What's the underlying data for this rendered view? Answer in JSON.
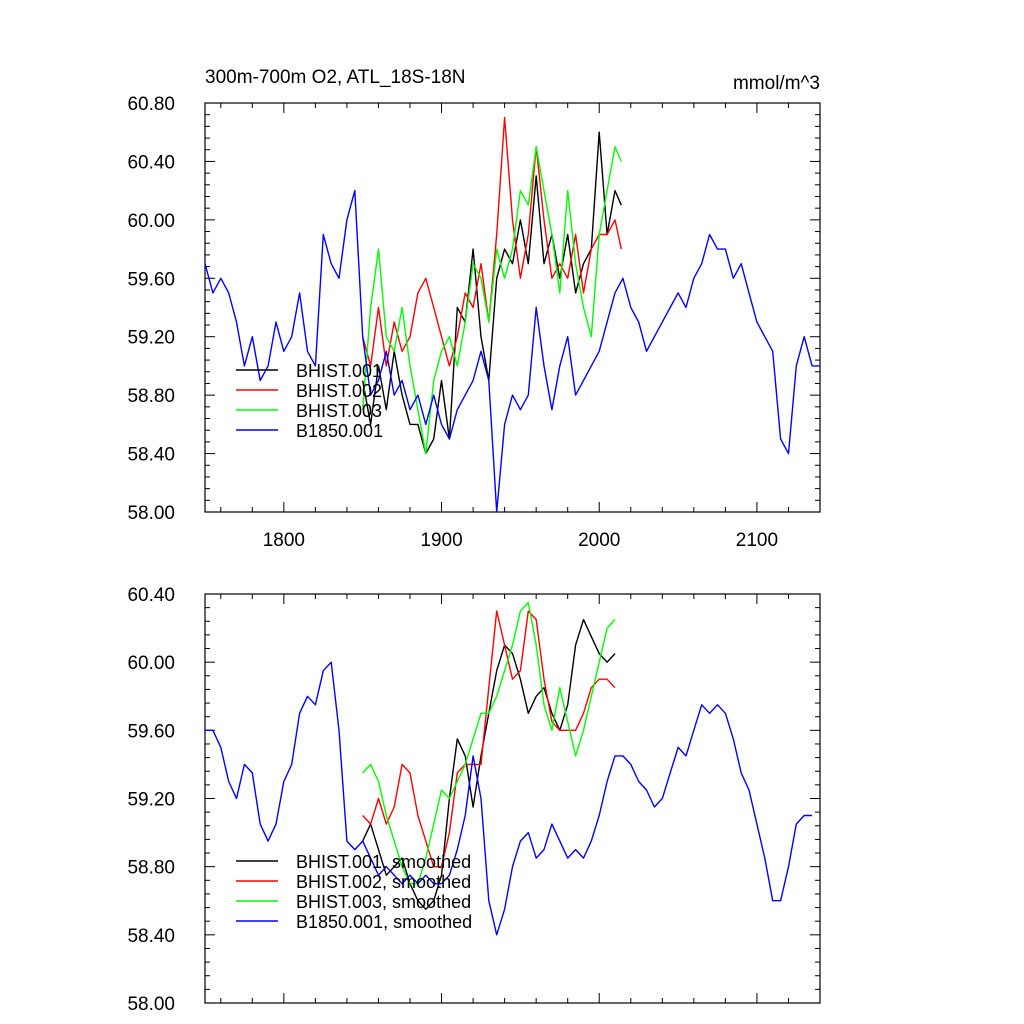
{
  "chart_data": [
    {
      "type": "line",
      "title": "300m-700m O2, ATL_18S-18N",
      "units": "mmol/m^3",
      "xlim": [
        1750,
        2140
      ],
      "ylim": [
        58.0,
        60.8
      ],
      "x_ticks": [
        "1800",
        "1900",
        "2000",
        "2100"
      ],
      "y_ticks": [
        "58.00",
        "58.40",
        "58.80",
        "59.20",
        "59.60",
        "60.00",
        "60.40",
        "60.80"
      ],
      "legend_position": "bottom-left",
      "series": [
        {
          "name": "BHIST.001",
          "color": "#000000",
          "x": [
            1850,
            1855,
            1860,
            1865,
            1870,
            1875,
            1880,
            1885,
            1890,
            1895,
            1900,
            1905,
            1910,
            1915,
            1920,
            1925,
            1930,
            1935,
            1940,
            1945,
            1950,
            1955,
            1960,
            1965,
            1970,
            1975,
            1980,
            1985,
            1990,
            1995,
            2000,
            2005,
            2010,
            2014
          ],
          "y": [
            58.9,
            58.6,
            59.0,
            58.7,
            59.1,
            58.8,
            58.6,
            58.6,
            58.4,
            58.5,
            58.9,
            58.5,
            59.4,
            59.3,
            59.8,
            59.2,
            58.9,
            59.6,
            59.8,
            59.7,
            60.0,
            59.7,
            60.3,
            59.7,
            59.9,
            59.6,
            59.9,
            59.5,
            59.7,
            59.8,
            60.6,
            59.9,
            60.2,
            60.1
          ]
        },
        {
          "name": "BHIST.002",
          "color": "#ff0000",
          "x": [
            1850,
            1855,
            1860,
            1865,
            1870,
            1875,
            1880,
            1885,
            1890,
            1895,
            1900,
            1905,
            1910,
            1915,
            1920,
            1925,
            1930,
            1935,
            1940,
            1945,
            1950,
            1955,
            1960,
            1965,
            1970,
            1975,
            1980,
            1985,
            1990,
            1995,
            2000,
            2005,
            2010,
            2014
          ],
          "y": [
            59.2,
            59.0,
            59.4,
            59.0,
            59.3,
            59.1,
            59.2,
            59.5,
            59.6,
            59.4,
            59.2,
            59.0,
            59.2,
            59.5,
            59.4,
            59.7,
            59.3,
            59.9,
            60.7,
            60.0,
            59.6,
            59.9,
            60.5,
            60.0,
            59.6,
            59.7,
            59.6,
            59.9,
            59.5,
            59.8,
            59.9,
            59.9,
            60.0,
            59.8
          ]
        },
        {
          "name": "BHIST.003",
          "color": "#00ff00",
          "x": [
            1850,
            1855,
            1860,
            1865,
            1870,
            1875,
            1880,
            1885,
            1890,
            1895,
            1900,
            1905,
            1910,
            1915,
            1920,
            1925,
            1930,
            1935,
            1940,
            1945,
            1950,
            1955,
            1960,
            1965,
            1970,
            1975,
            1980,
            1985,
            1990,
            1995,
            2000,
            2005,
            2010,
            2014
          ],
          "y": [
            58.7,
            59.4,
            59.8,
            59.2,
            59.1,
            59.4,
            59.0,
            58.7,
            58.4,
            58.9,
            59.1,
            59.2,
            59.0,
            59.3,
            59.7,
            59.6,
            59.3,
            59.8,
            59.6,
            59.8,
            60.2,
            60.1,
            60.5,
            60.2,
            59.9,
            59.5,
            60.2,
            59.7,
            59.4,
            59.2,
            59.9,
            60.2,
            60.5,
            60.4
          ]
        },
        {
          "name": "B1850.001",
          "color": "#0000ff",
          "x": [
            1750,
            1755,
            1760,
            1765,
            1770,
            1775,
            1780,
            1785,
            1790,
            1795,
            1800,
            1805,
            1810,
            1815,
            1820,
            1825,
            1830,
            1835,
            1840,
            1845,
            1850,
            1855,
            1860,
            1865,
            1870,
            1875,
            1880,
            1885,
            1890,
            1895,
            1900,
            1905,
            1910,
            1915,
            1920,
            1925,
            1930,
            1935,
            1940,
            1945,
            1950,
            1955,
            1960,
            1965,
            1970,
            1975,
            1980,
            1985,
            1990,
            1995,
            2000,
            2005,
            2010,
            2015,
            2020,
            2025,
            2030,
            2035,
            2040,
            2045,
            2050,
            2055,
            2060,
            2065,
            2070,
            2075,
            2080,
            2085,
            2090,
            2095,
            2100,
            2105,
            2110,
            2115,
            2120,
            2125,
            2130,
            2135,
            2140
          ],
          "y": [
            59.7,
            59.5,
            59.6,
            59.5,
            59.3,
            59.0,
            59.2,
            58.9,
            59.0,
            59.3,
            59.1,
            59.2,
            59.5,
            59.1,
            59.0,
            59.9,
            59.7,
            59.6,
            60.0,
            60.2,
            59.2,
            58.8,
            58.9,
            59.1,
            58.8,
            58.9,
            58.7,
            58.8,
            58.6,
            58.8,
            58.6,
            58.5,
            58.7,
            58.8,
            58.9,
            59.1,
            58.9,
            58.0,
            58.6,
            58.8,
            58.7,
            58.8,
            59.4,
            59.0,
            58.7,
            59.0,
            59.2,
            58.8,
            58.9,
            59.0,
            59.1,
            59.3,
            59.5,
            59.6,
            59.4,
            59.3,
            59.1,
            59.2,
            59.3,
            59.4,
            59.5,
            59.4,
            59.6,
            59.7,
            59.9,
            59.8,
            59.8,
            59.6,
            59.7,
            59.5,
            59.3,
            59.2,
            59.1,
            58.5,
            58.4,
            59.0,
            59.2,
            59.0,
            59.0
          ]
        }
      ]
    },
    {
      "type": "line",
      "xlim": [
        1750,
        2140
      ],
      "ylim": [
        58.0,
        60.4
      ],
      "y_ticks": [
        "58.00",
        "58.40",
        "58.80",
        "59.20",
        "59.60",
        "60.00",
        "60.40"
      ],
      "legend_position": "bottom-left",
      "series": [
        {
          "name": "BHIST.001, smoothed",
          "color": "#000000",
          "x": [
            1850,
            1855,
            1860,
            1865,
            1870,
            1875,
            1880,
            1885,
            1890,
            1895,
            1900,
            1905,
            1910,
            1915,
            1920,
            1925,
            1930,
            1935,
            1940,
            1945,
            1950,
            1955,
            1960,
            1965,
            1970,
            1975,
            1980,
            1985,
            1990,
            1995,
            2000,
            2005,
            2010
          ],
          "y": [
            58.95,
            59.05,
            58.9,
            58.75,
            58.8,
            58.85,
            58.7,
            58.6,
            58.55,
            58.6,
            58.75,
            59.2,
            59.55,
            59.45,
            59.15,
            59.45,
            59.7,
            59.95,
            60.1,
            60.05,
            59.9,
            59.7,
            59.8,
            59.85,
            59.7,
            59.6,
            59.75,
            60.1,
            60.25,
            60.15,
            60.05,
            60.0,
            60.05
          ]
        },
        {
          "name": "BHIST.002, smoothed",
          "color": "#ff0000",
          "x": [
            1850,
            1855,
            1860,
            1865,
            1870,
            1875,
            1880,
            1885,
            1890,
            1895,
            1900,
            1905,
            1910,
            1915,
            1920,
            1925,
            1930,
            1935,
            1940,
            1945,
            1950,
            1955,
            1960,
            1965,
            1970,
            1975,
            1980,
            1985,
            1990,
            1995,
            2000,
            2005,
            2010
          ],
          "y": [
            59.1,
            59.05,
            59.2,
            59.05,
            59.15,
            59.4,
            59.35,
            59.1,
            58.95,
            58.8,
            58.8,
            59.0,
            59.35,
            59.4,
            59.4,
            59.4,
            59.85,
            60.3,
            60.1,
            59.9,
            59.95,
            60.3,
            60.25,
            59.9,
            59.65,
            59.6,
            59.6,
            59.6,
            59.7,
            59.85,
            59.9,
            59.9,
            59.85
          ]
        },
        {
          "name": "BHIST.003, smoothed",
          "color": "#00ff00",
          "x": [
            1850,
            1855,
            1860,
            1865,
            1870,
            1875,
            1880,
            1885,
            1890,
            1895,
            1900,
            1905,
            1910,
            1915,
            1920,
            1925,
            1930,
            1935,
            1940,
            1945,
            1950,
            1955,
            1960,
            1965,
            1970,
            1975,
            1980,
            1985,
            1990,
            1995,
            2000,
            2005,
            2010
          ],
          "y": [
            59.35,
            59.4,
            59.3,
            59.1,
            58.95,
            58.8,
            58.7,
            58.7,
            58.85,
            59.05,
            59.25,
            59.2,
            59.3,
            59.4,
            59.55,
            59.7,
            59.7,
            59.8,
            59.95,
            60.1,
            60.3,
            60.35,
            60.1,
            59.75,
            59.6,
            59.85,
            59.65,
            59.45,
            59.6,
            59.8,
            60.0,
            60.2,
            60.25
          ]
        },
        {
          "name": "B1850.001, smoothed",
          "color": "#0000ff",
          "x": [
            1750,
            1755,
            1760,
            1765,
            1770,
            1775,
            1780,
            1785,
            1790,
            1795,
            1800,
            1805,
            1810,
            1815,
            1820,
            1825,
            1830,
            1835,
            1840,
            1845,
            1850,
            1855,
            1860,
            1865,
            1870,
            1875,
            1880,
            1885,
            1890,
            1895,
            1900,
            1905,
            1910,
            1915,
            1920,
            1925,
            1930,
            1935,
            1940,
            1945,
            1950,
            1955,
            1960,
            1965,
            1970,
            1975,
            1980,
            1985,
            1990,
            1995,
            2000,
            2005,
            2010,
            2015,
            2020,
            2025,
            2030,
            2035,
            2040,
            2045,
            2050,
            2055,
            2060,
            2065,
            2070,
            2075,
            2080,
            2085,
            2090,
            2095,
            2100,
            2105,
            2110,
            2115,
            2120,
            2125,
            2130,
            2135
          ],
          "y": [
            59.6,
            59.6,
            59.5,
            59.3,
            59.2,
            59.4,
            59.35,
            59.05,
            58.95,
            59.05,
            59.3,
            59.4,
            59.7,
            59.8,
            59.75,
            59.95,
            60.0,
            59.6,
            58.95,
            58.9,
            58.95,
            58.85,
            58.75,
            58.8,
            58.75,
            58.7,
            58.75,
            58.7,
            58.75,
            58.7,
            58.7,
            58.75,
            58.9,
            59.1,
            59.45,
            59.2,
            58.6,
            58.4,
            58.55,
            58.8,
            58.95,
            59.0,
            58.85,
            58.9,
            59.05,
            58.95,
            58.85,
            58.9,
            58.85,
            58.95,
            59.1,
            59.3,
            59.45,
            59.45,
            59.4,
            59.3,
            59.25,
            59.15,
            59.2,
            59.35,
            59.5,
            59.45,
            59.6,
            59.75,
            59.7,
            59.75,
            59.7,
            59.55,
            59.35,
            59.25,
            59.05,
            58.85,
            58.6,
            58.6,
            58.8,
            59.05,
            59.1,
            59.1
          ]
        }
      ]
    }
  ]
}
